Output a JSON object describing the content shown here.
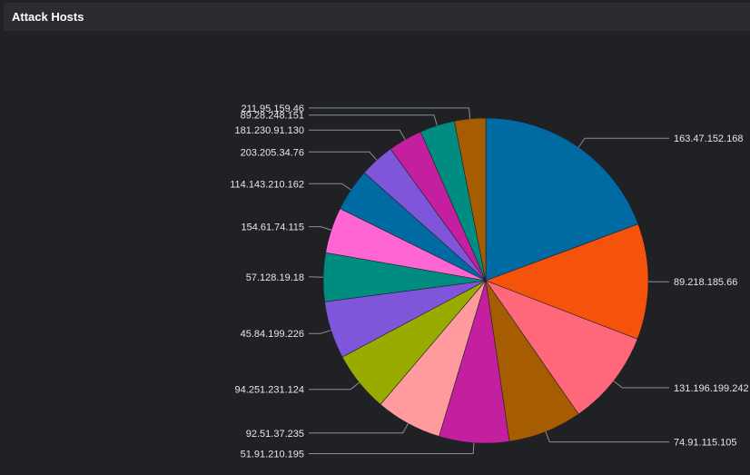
{
  "panel": {
    "title": "Attack Hosts"
  },
  "chart_data": {
    "type": "pie",
    "title": "",
    "slices": [
      {
        "label": "163.47.152.168",
        "value": 20.0,
        "color": "#006aa3"
      },
      {
        "label": "89.218.185.66",
        "value": 11.9,
        "color": "#f5520c"
      },
      {
        "label": "131.196.199.242",
        "value": 9.8,
        "color": "#ff677b"
      },
      {
        "label": "74.91.115.105",
        "value": 7.6,
        "color": "#a65c00"
      },
      {
        "label": "51.91.210.195",
        "value": 7.2,
        "color": "#c41f9e"
      },
      {
        "label": "92.51.37.235",
        "value": 6.8,
        "color": "#ff9b9e"
      },
      {
        "label": "94.251.231.124",
        "value": 6.2,
        "color": "#9aab00"
      },
      {
        "label": "45.84.199.226",
        "value": 5.9,
        "color": "#7f56d9"
      },
      {
        "label": "57.128.19.18",
        "value": 5.0,
        "color": "#008c80"
      },
      {
        "label": "154.61.74.115",
        "value": 4.7,
        "color": "#ff66d4"
      },
      {
        "label": "114.143.210.162",
        "value": 4.4,
        "color": "#006aa3"
      },
      {
        "label": "203.205.34.76",
        "value": 3.6,
        "color": "#7f56d9"
      },
      {
        "label": "181.230.91.130",
        "value": 3.5,
        "color": "#c41f9e"
      },
      {
        "label": "89.28.248.151",
        "value": 3.6,
        "color": "#008c80"
      },
      {
        "label": "211.95.159.46",
        "value": 3.2,
        "color": "#a65c00"
      }
    ]
  }
}
